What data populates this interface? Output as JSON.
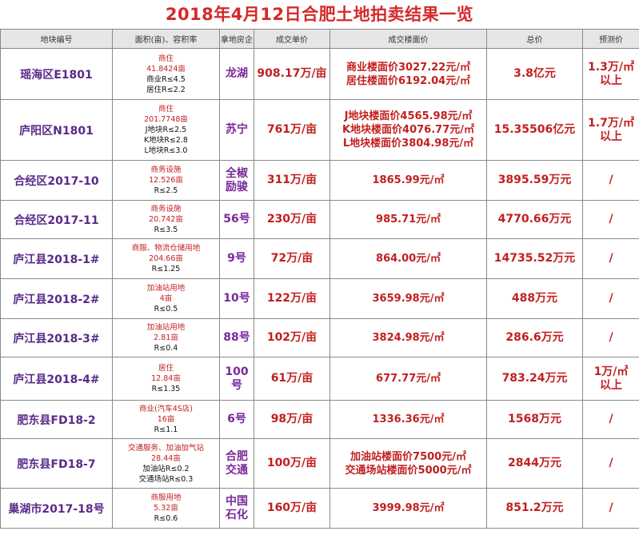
{
  "title": "2018年4月12日合肥土地拍卖结果一览",
  "headers": [
    "地块编号",
    "面积(亩)、容积率",
    "拿地房企",
    "成交单价",
    "成交楼面价",
    "总价",
    "预测价"
  ],
  "rows": [
    {
      "name": "瑶海区E1801",
      "area": [
        "商住",
        "41.8424亩",
        "商业R≤4.5",
        "居住R≤2.2"
      ],
      "dev": [
        "龙湖"
      ],
      "price": "908.17万/亩",
      "floor": [
        "商业楼面价3027.22元/㎡",
        "居住楼面价6192.04元/㎡"
      ],
      "total": "3.8亿元",
      "forecast": [
        "1.3万/㎡",
        "以上"
      ]
    },
    {
      "name": "庐阳区N1801",
      "area": [
        "商住",
        "201.7748亩",
        "J地块R≤2.5",
        "K地块R≤2.8",
        "L地块R≤3.0"
      ],
      "dev": [
        "苏宁"
      ],
      "price": "761万/亩",
      "floor": [
        "J地块楼面价4565.98元/㎡",
        "K地块楼面价4076.77元/㎡",
        "L地块楼面价3804.98元/㎡"
      ],
      "total": "15.35506亿元",
      "forecast": [
        "1.7万/㎡",
        "以上"
      ]
    },
    {
      "name": "合经区2017-10",
      "area": [
        "商务设施",
        "12.526亩",
        "R≤2.5"
      ],
      "dev": [
        "全椒",
        "励骏"
      ],
      "price": "311万/亩",
      "floor": [
        "1865.99元/㎡"
      ],
      "total": "3895.59万元",
      "forecast": [
        "/"
      ]
    },
    {
      "name": "合经区2017-11",
      "area": [
        "商务设施",
        "20.742亩",
        "R≤3.5"
      ],
      "dev": [
        "56号"
      ],
      "price": "230万/亩",
      "floor": [
        "985.71元/㎡"
      ],
      "total": "4770.66万元",
      "forecast": [
        "/"
      ]
    },
    {
      "name": "庐江县2018-1#",
      "area": [
        "商服、物流仓储用地",
        "204.66亩",
        "R≤1.25"
      ],
      "dev": [
        "9号"
      ],
      "price": "72万/亩",
      "floor": [
        "864.00元/㎡"
      ],
      "total": "14735.52万元",
      "forecast": [
        "/"
      ]
    },
    {
      "name": "庐江县2018-2#",
      "area": [
        "加油站用地",
        "4亩",
        "R≤0.5"
      ],
      "dev": [
        "10号"
      ],
      "price": "122万/亩",
      "floor": [
        "3659.98元/㎡"
      ],
      "total": "488万元",
      "forecast": [
        "/"
      ]
    },
    {
      "name": "庐江县2018-3#",
      "area": [
        "加油站用地",
        "2.81亩",
        "R≤0.4"
      ],
      "dev": [
        "88号"
      ],
      "price": "102万/亩",
      "floor": [
        "3824.98元/㎡"
      ],
      "total": "286.6万元",
      "forecast": [
        "/"
      ]
    },
    {
      "name": "庐江县2018-4#",
      "area": [
        "居住",
        "12.84亩",
        "R≤1.35"
      ],
      "dev": [
        "100",
        "号"
      ],
      "price": "61万/亩",
      "floor": [
        "677.77元/㎡"
      ],
      "total": "783.24万元",
      "forecast": [
        "1万/㎡",
        "以上"
      ]
    },
    {
      "name": "肥东县FD18-2",
      "area": [
        "商业(汽车4S店)",
        "16亩",
        "R≤1.1"
      ],
      "dev": [
        "6号"
      ],
      "price": "98万/亩",
      "floor": [
        "1336.36元/㎡"
      ],
      "total": "1568万元",
      "forecast": [
        "/"
      ]
    },
    {
      "name": "肥东县FD18-7",
      "area": [
        "交通服务、加油加气站",
        "28.44亩",
        "加油站R≤0.2",
        "交通场站R≤0.3"
      ],
      "dev": [
        "合肥",
        "交通"
      ],
      "price": "100万/亩",
      "floor": [
        "加油站楼面价7500元/㎡",
        "交通场站楼面价5000元/㎡"
      ],
      "total": "2844万元",
      "forecast": [
        "/"
      ]
    },
    {
      "name": "巢湖市2017-18号",
      "area": [
        "商服用地",
        "5.32亩",
        "R≤0.6"
      ],
      "dev": [
        "中国",
        "石化"
      ],
      "price": "160万/亩",
      "floor": [
        "3999.98元/㎡"
      ],
      "total": "851.2万元",
      "forecast": [
        "/"
      ]
    }
  ]
}
